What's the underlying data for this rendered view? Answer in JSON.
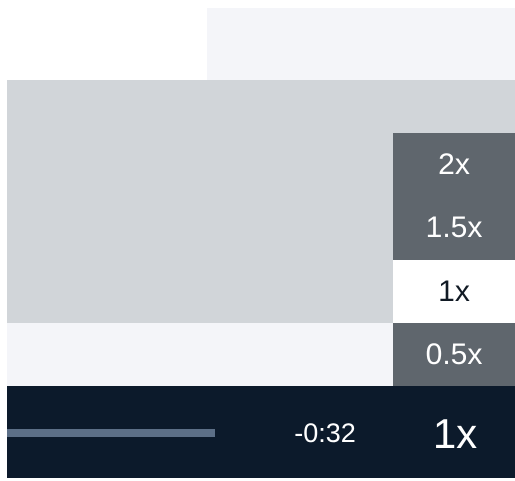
{
  "speed_menu": {
    "options": [
      "2x",
      "1.5x",
      "1x",
      "0.5x"
    ]
  },
  "controls": {
    "time_remaining": "-0:32",
    "speed_button": "1x"
  }
}
